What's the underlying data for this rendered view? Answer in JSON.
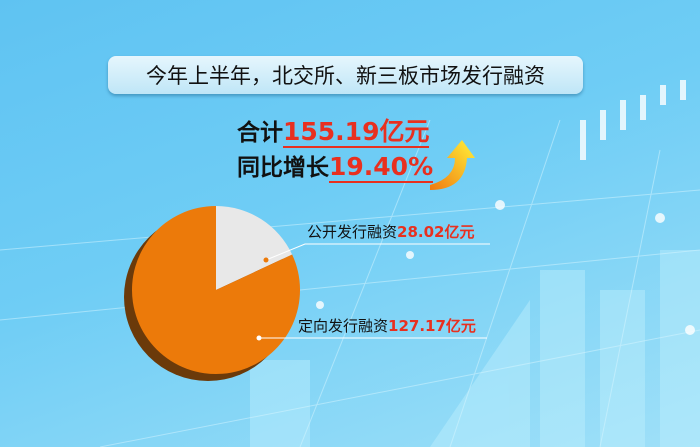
{
  "title": "今年上半年，北交所、新三板市场发行融资",
  "total": {
    "label": "合计",
    "value": "155.19亿元"
  },
  "growth": {
    "label": "同比增长",
    "value": "19.40%"
  },
  "colors": {
    "public": "#e8e8e8",
    "private": "#ec7a0a",
    "accent": "#e8301f"
  },
  "chart_data": {
    "type": "pie",
    "unit": "亿元",
    "slices": [
      {
        "name": "公开发行融资",
        "value": 28.02,
        "label": "28.02亿元"
      },
      {
        "name": "定向发行融资",
        "value": 127.17,
        "label": "127.17亿元"
      }
    ]
  }
}
